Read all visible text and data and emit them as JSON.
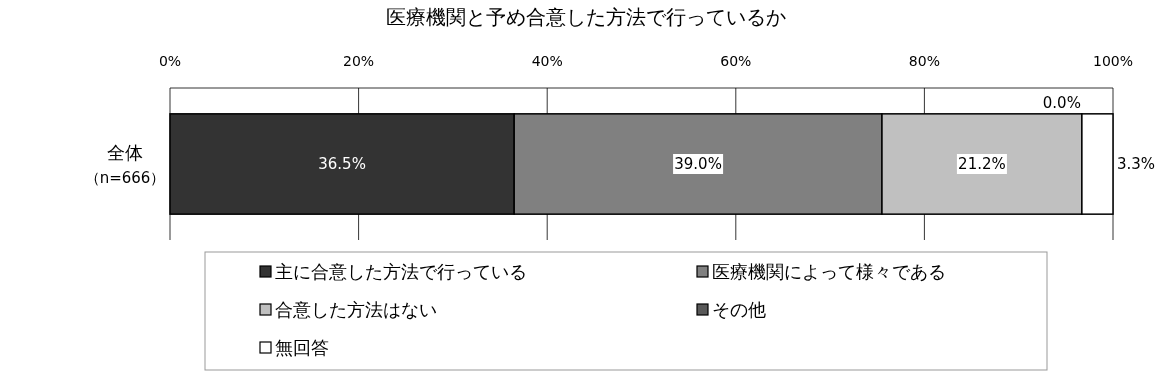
{
  "chart_data": {
    "type": "bar",
    "title": "医療機関と予め合意した方法で行っているか",
    "orientation": "horizontal",
    "stacked": true,
    "categories": [
      "全体（n=666）"
    ],
    "series": [
      {
        "name": "主に合意した方法で行っている",
        "color": "#333333",
        "values": [
          36.5
        ]
      },
      {
        "name": "医療機関によって様々である",
        "color": "#808080",
        "values": [
          39.0
        ]
      },
      {
        "name": "合意した方法はない",
        "color": "#c0c0c0",
        "values": [
          21.2
        ]
      },
      {
        "name": "その他",
        "color": "#595959",
        "values": [
          0.0
        ]
      },
      {
        "name": "無回答",
        "color": "#ffffff",
        "values": [
          3.3
        ]
      }
    ],
    "xlim": [
      0,
      100
    ],
    "xticks": [
      {
        "value": 0,
        "label": "0%"
      },
      {
        "value": 20,
        "label": "20%"
      },
      {
        "value": 40,
        "label": "40%"
      },
      {
        "value": 60,
        "label": "60%"
      },
      {
        "value": 80,
        "label": "80%"
      },
      {
        "value": 100,
        "label": "100%"
      }
    ],
    "value_labels": [
      "36.5%",
      "39.0%",
      "21.2%",
      "0.0%",
      "3.3%"
    ],
    "grid": "x",
    "legend": "bottom"
  }
}
